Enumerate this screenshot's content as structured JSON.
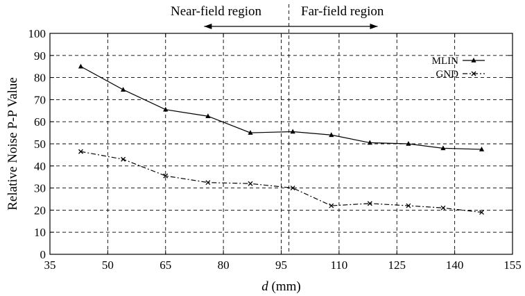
{
  "chart_data": {
    "type": "line",
    "title": "",
    "xlabel_italic": "d",
    "xlabel_rest": " (mm)",
    "ylabel": "Relative Noise P-P Value",
    "xlim": [
      35,
      155
    ],
    "ylim": [
      0,
      100
    ],
    "xticks": [
      35,
      50,
      65,
      80,
      95,
      110,
      125,
      140,
      155
    ],
    "yticks": [
      0,
      10,
      20,
      30,
      40,
      50,
      60,
      70,
      80,
      90,
      100
    ],
    "grid": true,
    "legend_position": "top-right",
    "series": [
      {
        "name": "MLIN",
        "marker": "triangle",
        "dash": "solid",
        "x": [
          43,
          54,
          65,
          76,
          87,
          98,
          108,
          118,
          128,
          137,
          147
        ],
        "y": [
          85,
          74.5,
          65.5,
          62.5,
          55,
          55.5,
          54,
          50.5,
          50,
          48,
          47.5
        ]
      },
      {
        "name": "GND",
        "marker": "x",
        "dash": "dash-dot",
        "x": [
          43,
          54,
          65,
          76,
          87,
          98,
          108,
          118,
          128,
          137,
          147
        ],
        "y": [
          46.5,
          43,
          35.5,
          32.5,
          32,
          30,
          22,
          23,
          22,
          21,
          19
        ]
      }
    ],
    "annotations": {
      "near_field": "Near-field region",
      "far_field": "Far-field region",
      "boundary_x": 97,
      "arrow_from_x": 75,
      "arrow_to_x": 120
    }
  }
}
